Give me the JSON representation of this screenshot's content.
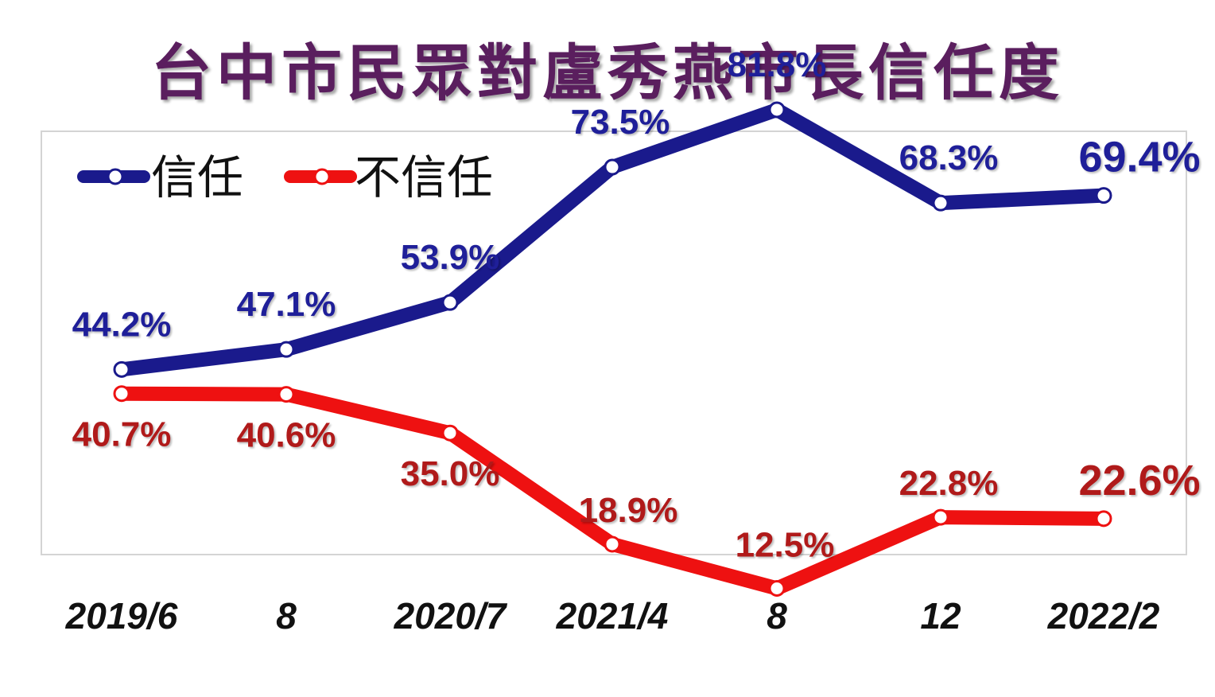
{
  "title": "台中市民眾對盧秀燕市長信任度",
  "legend": [
    {
      "label": "信任",
      "color": "#1a1a8c"
    },
    {
      "label": "不信任",
      "color": "#ee1111"
    }
  ],
  "chart_data": {
    "type": "line",
    "title": "台中市民眾對盧秀燕市長信任度",
    "categories": [
      "2019/6",
      "8",
      "2020/7",
      "2021/4",
      "8",
      "12",
      "2022/2"
    ],
    "series": [
      {
        "name": "信任",
        "color": "#1a1a8c",
        "label_color": "#1f1f99",
        "values": [
          44.2,
          47.1,
          53.9,
          73.5,
          81.8,
          68.3,
          69.4
        ],
        "labels": [
          "44.2%",
          "47.1%",
          "53.9%",
          "73.5%",
          "81.8%",
          "68.3%",
          "69.4%"
        ]
      },
      {
        "name": "不信任",
        "color": "#ee1111",
        "label_color": "#b01a1a",
        "values": [
          40.7,
          40.6,
          35.0,
          18.9,
          12.5,
          22.8,
          22.6
        ],
        "labels": [
          "40.7%",
          "40.6%",
          "35.0%",
          "18.9%",
          "12.5%",
          "22.8%",
          "22.6%"
        ]
      }
    ],
    "ylim": [
      5,
      95
    ],
    "grid": false,
    "legend_position": "top-left",
    "xlabel": "",
    "ylabel": ""
  }
}
